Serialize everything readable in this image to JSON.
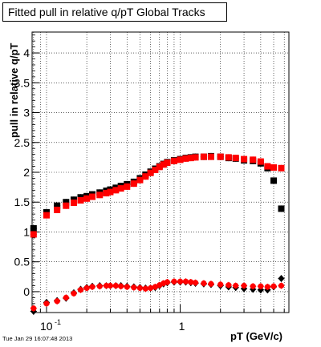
{
  "title": "Fitted pull in relative q/pT  Global Tracks",
  "datestamp": "Tue Jan 29 16:07:48 2013",
  "colors": {
    "series_black": "#000000",
    "series_red": "#ff0000",
    "grid": "#000000"
  },
  "chart_data": {
    "type": "scatter",
    "title": "Fitted pull in relative q/pT  Global Tracks",
    "xlabel": "pT (GeV/c)",
    "ylabel": "pull in relative q/pT",
    "xscale": "log",
    "xlim": [
      0.078,
      6.5
    ],
    "ylim": [
      -0.35,
      4.35
    ],
    "grid": true,
    "x_tick_labels": [
      {
        "value": 0.1,
        "base": "10",
        "exp": "-1"
      },
      {
        "value": 1,
        "base": "1",
        "exp": ""
      }
    ],
    "y_ticks": [
      0,
      0.5,
      1,
      1.5,
      2,
      2.5,
      3,
      3.5,
      4
    ],
    "y_tick_labels": [
      "0",
      "0.5",
      "1",
      "1.5",
      "2",
      "2.5",
      "3",
      "3.5",
      "4"
    ],
    "series": [
      {
        "color": "#000000",
        "marker": "square",
        "x": [
          0.08,
          0.1,
          0.12,
          0.14,
          0.16,
          0.18,
          0.2,
          0.22,
          0.25,
          0.28,
          0.3,
          0.33,
          0.36,
          0.4,
          0.45,
          0.5,
          0.55,
          0.6,
          0.65,
          0.7,
          0.75,
          0.8,
          0.9,
          1.0,
          1.1,
          1.2,
          1.3,
          1.5,
          1.7,
          2.0,
          2.3,
          2.6,
          3.0,
          3.5,
          4.0,
          4.5,
          5.0,
          5.7
        ],
        "y": [
          1.06,
          1.33,
          1.44,
          1.5,
          1.54,
          1.58,
          1.6,
          1.63,
          1.66,
          1.69,
          1.71,
          1.74,
          1.77,
          1.8,
          1.84,
          1.9,
          1.96,
          2.01,
          2.06,
          2.1,
          2.14,
          2.17,
          2.2,
          2.22,
          2.24,
          2.25,
          2.26,
          2.26,
          2.27,
          2.26,
          2.24,
          2.23,
          2.2,
          2.19,
          2.15,
          2.07,
          1.86,
          1.39
        ]
      },
      {
        "color": "#ff0000",
        "marker": "square",
        "x": [
          0.08,
          0.1,
          0.12,
          0.14,
          0.16,
          0.18,
          0.2,
          0.22,
          0.25,
          0.28,
          0.3,
          0.33,
          0.36,
          0.4,
          0.45,
          0.5,
          0.55,
          0.6,
          0.65,
          0.7,
          0.75,
          0.8,
          0.9,
          1.0,
          1.1,
          1.2,
          1.3,
          1.5,
          1.7,
          2.0,
          2.3,
          2.6,
          3.0,
          3.5,
          4.0,
          4.5,
          5.0,
          5.7
        ],
        "y": [
          0.96,
          1.28,
          1.37,
          1.44,
          1.49,
          1.53,
          1.56,
          1.59,
          1.62,
          1.65,
          1.67,
          1.7,
          1.73,
          1.76,
          1.81,
          1.87,
          1.93,
          1.99,
          2.04,
          2.09,
          2.13,
          2.16,
          2.19,
          2.21,
          2.23,
          2.24,
          2.25,
          2.26,
          2.26,
          2.26,
          2.25,
          2.24,
          2.22,
          2.21,
          2.18,
          2.1,
          2.08,
          2.07
        ]
      },
      {
        "color": "#000000",
        "marker": "diamond",
        "x": [
          0.08,
          0.1,
          0.12,
          0.14,
          0.16,
          0.18,
          0.2,
          0.22,
          0.25,
          0.28,
          0.3,
          0.33,
          0.36,
          0.4,
          0.45,
          0.5,
          0.55,
          0.6,
          0.65,
          0.7,
          0.75,
          0.8,
          0.9,
          1.0,
          1.1,
          1.2,
          1.3,
          1.5,
          1.7,
          2.0,
          2.3,
          2.6,
          3.0,
          3.5,
          4.0,
          4.5,
          5.0,
          5.7
        ],
        "y": [
          -0.33,
          -0.18,
          -0.15,
          -0.11,
          -0.02,
          0.04,
          0.07,
          0.09,
          0.1,
          0.1,
          0.1,
          0.1,
          0.1,
          0.09,
          0.08,
          0.07,
          0.06,
          0.06,
          0.07,
          0.1,
          0.13,
          0.15,
          0.16,
          0.16,
          0.16,
          0.15,
          0.14,
          0.13,
          0.12,
          0.1,
          0.08,
          0.07,
          0.05,
          0.04,
          0.03,
          0.03,
          0.08,
          0.22
        ]
      },
      {
        "color": "#ff0000",
        "marker": "circle",
        "x": [
          0.08,
          0.1,
          0.12,
          0.14,
          0.16,
          0.18,
          0.2,
          0.22,
          0.25,
          0.28,
          0.3,
          0.33,
          0.36,
          0.4,
          0.45,
          0.5,
          0.55,
          0.6,
          0.65,
          0.7,
          0.75,
          0.8,
          0.9,
          1.0,
          1.1,
          1.2,
          1.3,
          1.5,
          1.7,
          2.0,
          2.3,
          2.6,
          3.0,
          3.5,
          4.0,
          4.5,
          5.0,
          5.7
        ],
        "y": [
          -0.28,
          -0.2,
          -0.16,
          -0.1,
          -0.03,
          0.03,
          0.06,
          0.08,
          0.09,
          0.1,
          0.1,
          0.1,
          0.09,
          0.08,
          0.07,
          0.06,
          0.05,
          0.06,
          0.08,
          0.11,
          0.14,
          0.16,
          0.17,
          0.17,
          0.17,
          0.16,
          0.15,
          0.14,
          0.13,
          0.12,
          0.11,
          0.1,
          0.1,
          0.09,
          0.09,
          0.08,
          0.09,
          0.1
        ]
      }
    ]
  }
}
